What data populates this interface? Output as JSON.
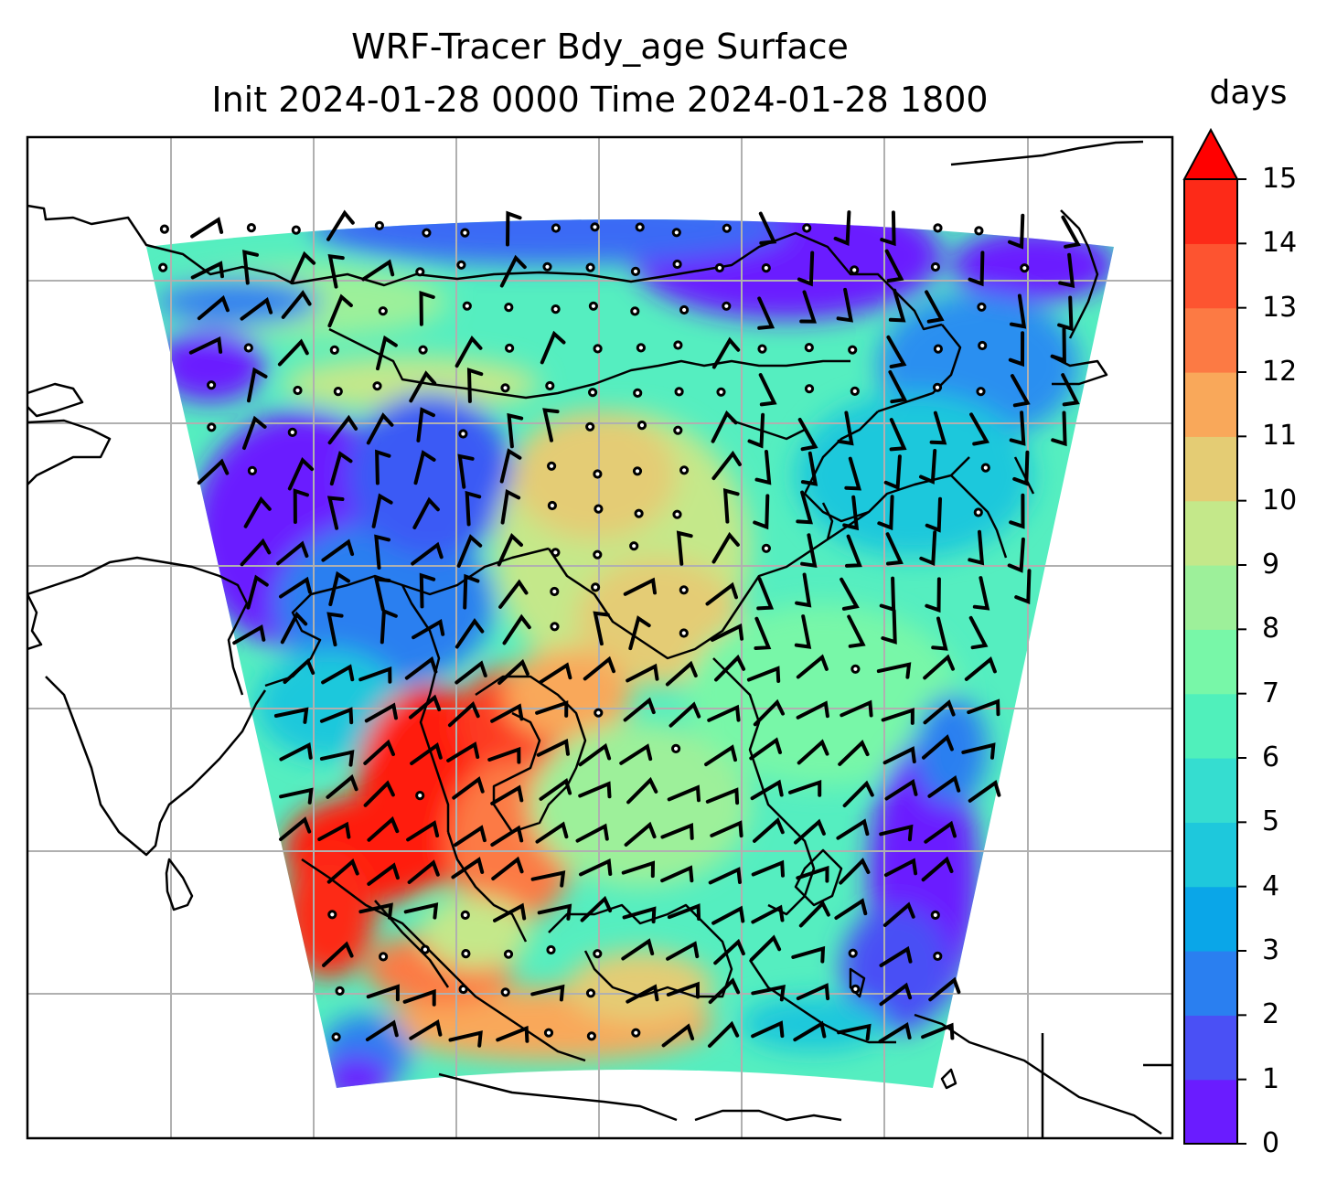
{
  "title": {
    "line1": "WRF-Tracer Bdy_age Surface",
    "line2": "Init 2024-01-28 0000 Time 2024-01-28 1800"
  },
  "colorbar": {
    "units": "days",
    "ticks": [
      "0",
      "1",
      "2",
      "3",
      "4",
      "5",
      "6",
      "7",
      "8",
      "9",
      "10",
      "11",
      "12",
      "13",
      "14",
      "15"
    ],
    "extend": "max",
    "colors": [
      "#6a1cff",
      "#4a50f5",
      "#2a7ff0",
      "#0aa6e8",
      "#1ec8dc",
      "#35ddd0",
      "#50f0bb",
      "#78f7a8",
      "#9df09a",
      "#c4e88a",
      "#e4cc74",
      "#f9a85a",
      "#fc7a44",
      "#fd5430",
      "#fd2a18",
      "#ff0000"
    ]
  },
  "map": {
    "variable": "Bdy_age",
    "level": "Surface",
    "overlays": [
      "coastlines",
      "gridlines",
      "wind-barbs",
      "calm-circles"
    ]
  }
}
